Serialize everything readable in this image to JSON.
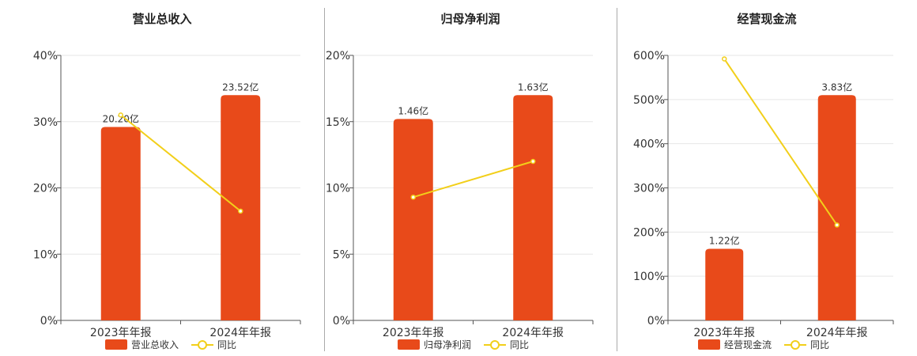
{
  "colors": {
    "bar": "#e84a1a",
    "line": "#f2cf1a",
    "grid": "#e6e6e6",
    "axis": "#555555"
  },
  "chart_data": [
    {
      "type": "bar",
      "title": "营业总收入",
      "categories": [
        "2023年年报",
        "2024年年报"
      ],
      "ylim": [
        0,
        40
      ],
      "yticks": [
        "0%",
        "10%",
        "20%",
        "30%",
        "40%"
      ],
      "series": [
        {
          "name": "营业总收入",
          "type": "bar",
          "values": [
            29.2,
            34.0
          ],
          "labels": [
            "20.20亿",
            "23.52亿"
          ]
        },
        {
          "name": "同比",
          "type": "line",
          "values": [
            31.0,
            16.5
          ]
        }
      ],
      "grid": true,
      "legend": "bottom"
    },
    {
      "type": "bar",
      "title": "归母净利润",
      "categories": [
        "2023年年报",
        "2024年年报"
      ],
      "ylim": [
        0,
        20
      ],
      "yticks": [
        "0%",
        "5%",
        "10%",
        "15%",
        "20%"
      ],
      "series": [
        {
          "name": "归母净利润",
          "type": "bar",
          "values": [
            15.2,
            17.0
          ],
          "labels": [
            "1.46亿",
            "1.63亿"
          ]
        },
        {
          "name": "同比",
          "type": "line",
          "values": [
            9.3,
            12.0
          ]
        }
      ],
      "grid": true,
      "legend": "bottom"
    },
    {
      "type": "bar",
      "title": "经营现金流",
      "categories": [
        "2023年年报",
        "2024年年报"
      ],
      "ylim": [
        0,
        600
      ],
      "yticks": [
        "0%",
        "100%",
        "200%",
        "300%",
        "400%",
        "500%",
        "600%"
      ],
      "series": [
        {
          "name": "经营现金流",
          "type": "bar",
          "values": [
            162,
            510
          ],
          "labels": [
            "1.22亿",
            "3.83亿"
          ]
        },
        {
          "name": "同比",
          "type": "line",
          "values": [
            592,
            216
          ]
        }
      ],
      "grid": true,
      "legend": "bottom"
    }
  ]
}
